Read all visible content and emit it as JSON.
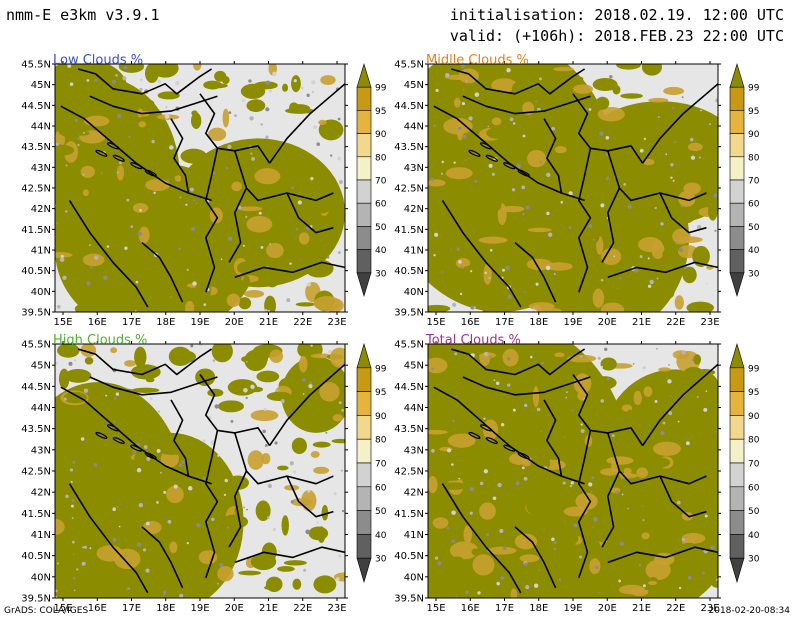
{
  "header": {
    "model": "nmm-E e3km v3.9.1",
    "initialisation": "initialisation: 2018.02.19. 12:00 UTC",
    "valid": "valid: (+106h): 2018.FEB.23 22:00 UTC"
  },
  "panels": [
    {
      "title": "Low Clouds %",
      "title_color": "#3050d0"
    },
    {
      "title": "Midlle Clouds %",
      "title_color": "#e08020"
    },
    {
      "title": "High Clouds %",
      "title_color": "#50b030"
    },
    {
      "title": "Total Clouds %",
      "title_color": "#a030a0"
    }
  ],
  "lat_labels": [
    "45.5N",
    "45N",
    "44.5N",
    "44N",
    "43.5N",
    "43N",
    "42.5N",
    "42N",
    "41.5N",
    "41N",
    "40.5N",
    "40N",
    "39.5N"
  ],
  "lon_labels": [
    "15E",
    "16E",
    "17E",
    "18E",
    "19E",
    "20E",
    "21E",
    "22E",
    "23E"
  ],
  "colorbar": {
    "labels": [
      "99",
      "95",
      "90",
      "80",
      "70",
      "60",
      "50",
      "40",
      "30"
    ],
    "colors": [
      "#8c8c00",
      "#c89a14",
      "#e6b43c",
      "#f2d88c",
      "#f4f0c8",
      "#d2d2d2",
      "#b4b4b4",
      "#8c8c8c",
      "#606060",
      "#404040"
    ]
  },
  "map_colors": {
    "background": "#e6e6e6",
    "cloud": "#8c8c00",
    "cloud_edge": "#c8a030",
    "border": "#000000"
  },
  "footer": {
    "left": "GrADS: COLA/IGES",
    "right": "2018-02-20-08:34"
  }
}
